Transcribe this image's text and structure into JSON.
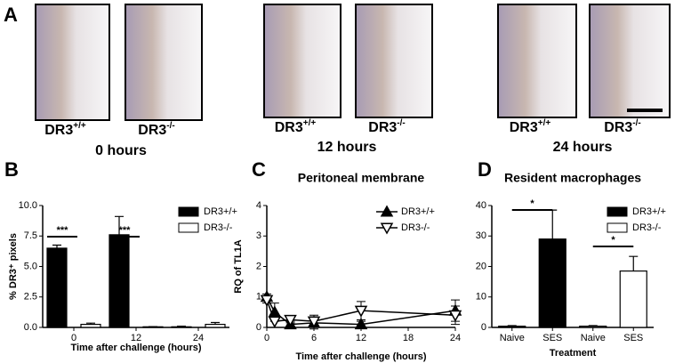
{
  "panel_a": {
    "label": "A",
    "images": [
      {
        "genotype": "DR3",
        "superscript": "+/+"
      },
      {
        "genotype": "DR3",
        "superscript": "-/-"
      },
      {
        "genotype": "DR3",
        "superscript": "+/+"
      },
      {
        "genotype": "DR3",
        "superscript": "-/-"
      },
      {
        "genotype": "DR3",
        "superscript": "+/+"
      },
      {
        "genotype": "DR3",
        "superscript": "-/-"
      }
    ],
    "times": [
      "0 hours",
      "12 hours",
      "24 hours"
    ]
  },
  "chart_data": [
    {
      "type": "bar",
      "panel_label": "B",
      "ylabel": "% DR3⁺ pixels",
      "xlabel": "Time after challenge (hours)",
      "categories": [
        "0",
        "12",
        "24"
      ],
      "series": [
        {
          "name": "DR3+/+",
          "color": "#000000",
          "values": [
            6.5,
            7.6,
            0.05
          ],
          "errors": [
            0.25,
            1.5,
            0.05
          ]
        },
        {
          "name": "DR3-/-",
          "color": "#ffffff",
          "values": [
            0.25,
            0.05,
            0.25
          ],
          "errors": [
            0.1,
            0.02,
            0.15
          ]
        }
      ],
      "ylim": [
        0,
        10
      ],
      "yticks": [
        {
          "value": 0,
          "label": "0.0"
        },
        {
          "value": 2.5,
          "label": "2.5"
        },
        {
          "value": 5,
          "label": "5.0"
        },
        {
          "value": 7.5,
          "label": "7.5"
        },
        {
          "value": 10,
          "label": "10.0"
        }
      ],
      "annotations": [
        "***",
        "***"
      ]
    },
    {
      "type": "line",
      "panel_label": "C",
      "title": "Peritoneal membrane",
      "ylabel": "RQ of TL1A",
      "xlabel": "Time after challenge (hours)",
      "x": [
        0,
        1,
        3,
        6,
        12,
        24
      ],
      "series": [
        {
          "name": "DR3+/+",
          "color": "#000000",
          "marker": "triangle-up",
          "values": [
            1.0,
            0.5,
            0.1,
            0.15,
            0.1,
            0.55
          ],
          "errors": [
            0.1,
            0.3,
            0.1,
            0.2,
            0.1,
            0.35
          ]
        },
        {
          "name": "DR3-/-",
          "color": "#000000",
          "marker": "triangle-down",
          "values": [
            0.9,
            0.2,
            0.25,
            0.2,
            0.55,
            0.4
          ],
          "errors": [
            0.1,
            0.2,
            0.1,
            0.2,
            0.3,
            0.3
          ]
        }
      ],
      "xlim": [
        0,
        24
      ],
      "xticks": [
        0,
        6,
        12,
        18,
        24
      ],
      "ylim": [
        0,
        4
      ],
      "yticks": [
        0,
        1,
        2,
        3,
        4
      ]
    },
    {
      "type": "bar",
      "panel_label": "D",
      "title": "Resident macrophages",
      "xlabel": "Treatment",
      "categories": [
        "Naive",
        "SES",
        "Naive",
        "SES"
      ],
      "series": [
        {
          "name": "DR3+/+",
          "color": "#000000",
          "values": [
            0.4,
            29,
            null,
            null
          ],
          "errors": [
            0.2,
            9.5,
            null,
            null
          ]
        },
        {
          "name": "DR3-/-",
          "color": "#ffffff",
          "values": [
            null,
            null,
            0.4,
            18.5
          ],
          "errors": [
            null,
            null,
            0.2,
            4.8
          ]
        }
      ],
      "ylim": [
        0,
        40
      ],
      "yticks": [
        0,
        10,
        20,
        30,
        40
      ],
      "annotations": [
        "*",
        "*"
      ]
    }
  ]
}
